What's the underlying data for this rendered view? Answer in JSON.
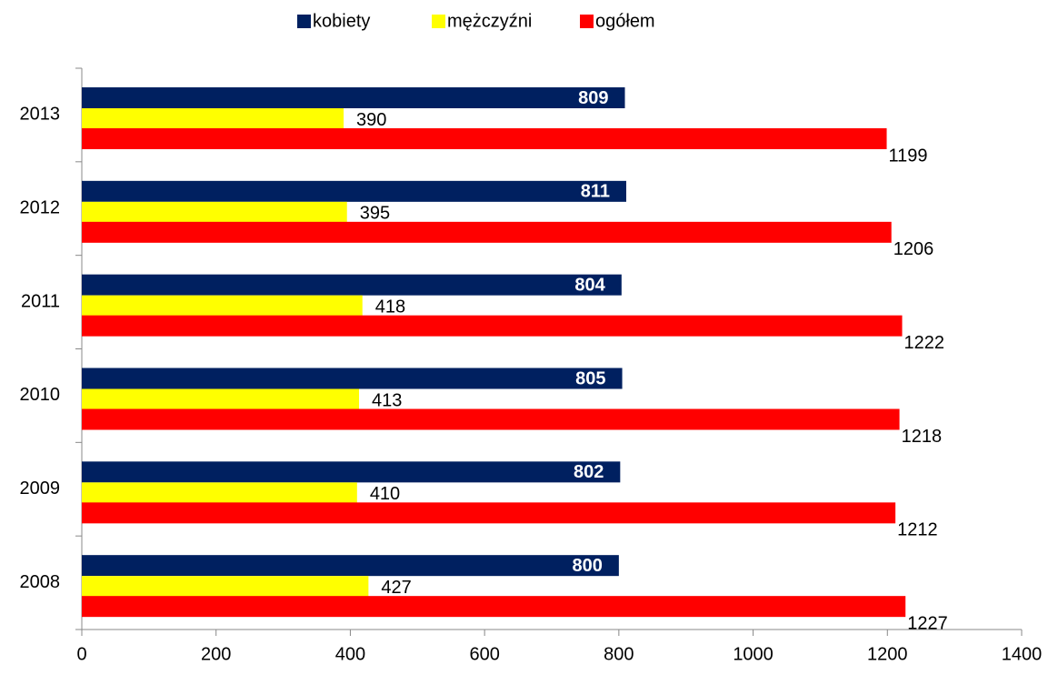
{
  "chart_data": {
    "type": "bar",
    "orientation": "horizontal",
    "categories": [
      "2008",
      "2009",
      "2010",
      "2011",
      "2012",
      "2013"
    ],
    "series": [
      {
        "name": "kobiety",
        "color": "#002060",
        "values": [
          800,
          802,
          805,
          804,
          811,
          809
        ]
      },
      {
        "name": "mężczyźni",
        "color": "#ffff00",
        "values": [
          427,
          410,
          413,
          418,
          395,
          390
        ]
      },
      {
        "name": "ogółem",
        "color": "#ff0000",
        "values": [
          1227,
          1212,
          1218,
          1222,
          1206,
          1199
        ]
      }
    ],
    "xlim": [
      0,
      1400
    ],
    "xticks": [
      0,
      200,
      400,
      600,
      800,
      1000,
      1200,
      1400
    ],
    "legend": "top"
  }
}
